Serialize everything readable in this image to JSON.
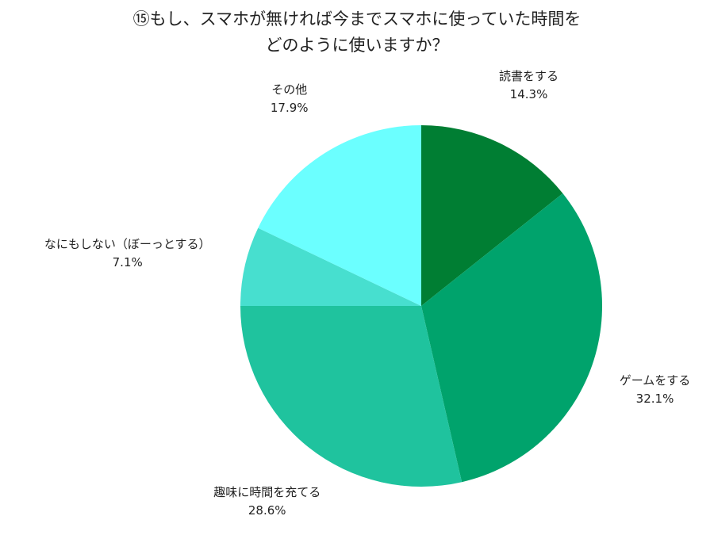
{
  "chart_data": {
    "type": "pie",
    "title_lines": [
      "⑮もし、スマホが無ければ今までスマホに使っていた時間を",
      "どのように使いますか？"
    ],
    "slices": [
      {
        "label": "読書をする",
        "value": 14.3,
        "value_label": "14.3%",
        "color": "#007e33"
      },
      {
        "label": "ゲームをする",
        "value": 32.1,
        "value_label": "32.1%",
        "color": "#00a36c"
      },
      {
        "label": "趣味に時間を充てる",
        "value": 28.6,
        "value_label": "28.6%",
        "color": "#1fc39e"
      },
      {
        "label": "なにもしない（ぼーっとする）",
        "value": 7.1,
        "value_label": "7.1%",
        "color": "#47dfcf"
      },
      {
        "label": "その他",
        "value": 17.9,
        "value_label": "17.9%",
        "color": "#6bffff"
      }
    ],
    "start_angle": "12 o'clock",
    "direction": "clockwise",
    "legend": "none"
  }
}
